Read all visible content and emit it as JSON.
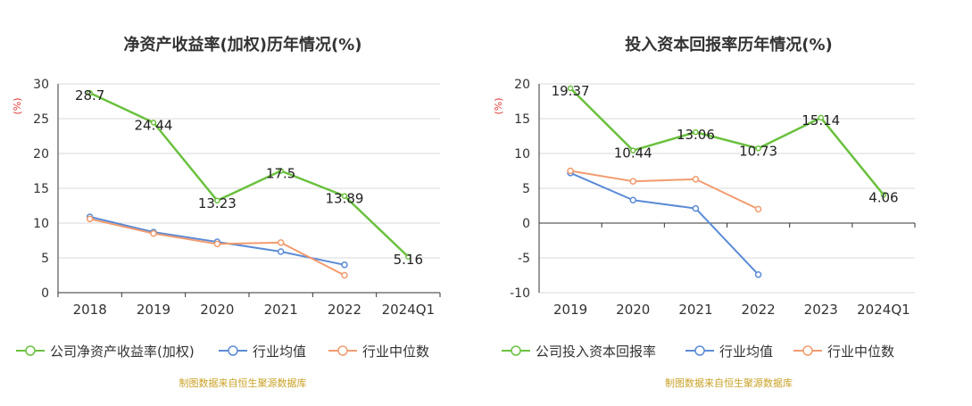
{
  "chart_data": [
    {
      "type": "line",
      "title": "净资产收益率(加权)历年情况(%)",
      "ylabel": "(%)",
      "ylim": [
        0,
        30
      ],
      "yticks": [
        0,
        5,
        10,
        15,
        20,
        25,
        30
      ],
      "categories": [
        "2018",
        "2019",
        "2020",
        "2021",
        "2022",
        "2024Q1"
      ],
      "grid": true,
      "legend_position": "bottom",
      "series": [
        {
          "name": "公司净资产收益率(加权)",
          "color": "#6ac13e",
          "values": [
            28.7,
            24.44,
            13.23,
            17.5,
            13.89,
            5.16
          ],
          "labels": [
            "28.7",
            "24.44",
            "13.23",
            "17.5",
            "13.89",
            "5.16"
          ]
        },
        {
          "name": "行业均值",
          "color": "#5b8bd6",
          "values": [
            10.9,
            8.7,
            7.3,
            5.9,
            4.0,
            null
          ],
          "labels": null
        },
        {
          "name": "行业中位数",
          "color": "#f29b6e",
          "values": [
            10.6,
            8.5,
            7.0,
            7.2,
            2.5,
            null
          ],
          "labels": null
        }
      ],
      "source": "制图数据来自恒生聚源数据库"
    },
    {
      "type": "line",
      "title": "投入资本回报率历年情况(%)",
      "ylabel": "(%)",
      "ylim": [
        -10,
        20
      ],
      "yticks": [
        -10,
        -5,
        0,
        5,
        10,
        15,
        20
      ],
      "categories": [
        "2019",
        "2020",
        "2021",
        "2022",
        "2023",
        "2024Q1"
      ],
      "grid": true,
      "legend_position": "bottom",
      "series": [
        {
          "name": "公司投入资本回报率",
          "color": "#6ac13e",
          "values": [
            19.37,
            10.44,
            13.06,
            10.73,
            15.14,
            4.06
          ],
          "labels": [
            "19.37",
            "10.44",
            "13.06",
            "10.73",
            "15.14",
            "4.06"
          ]
        },
        {
          "name": "行业均值",
          "color": "#5b8bd6",
          "values": [
            7.2,
            3.3,
            2.1,
            -7.4,
            null,
            null
          ],
          "labels": null
        },
        {
          "name": "行业中位数",
          "color": "#f29b6e",
          "values": [
            7.5,
            6.0,
            6.3,
            2.0,
            null,
            null
          ],
          "labels": null
        }
      ],
      "source": "制图数据来自恒生聚源数据库"
    }
  ]
}
